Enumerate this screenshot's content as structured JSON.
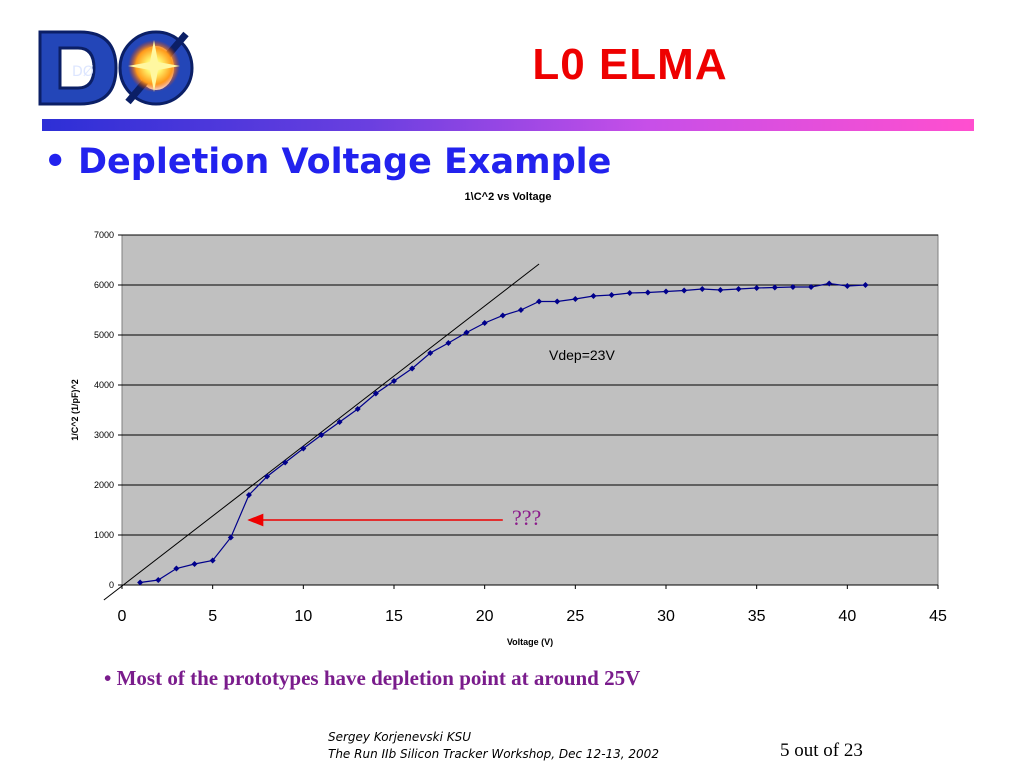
{
  "slide": {
    "title": "L0 ELMA",
    "heading_bullet": "•",
    "heading": "Depletion Voltage Example",
    "note": "• Most of the prototypes have depletion point at around 25V",
    "footer_line1": "Sergey Korjenevski KSU",
    "footer_line2": "The Run IIb Silicon Tracker Workshop,  Dec 12-13, 2002",
    "page": "5 out of 23",
    "logo_text": "DØ",
    "colors": {
      "title": "#ee0000",
      "heading": "#2222ee",
      "note": "#7a1c8c",
      "series": "#00008b",
      "plot_bg": "#c0c0c0",
      "arrow": "#ee0000"
    }
  },
  "chart_data": {
    "type": "line",
    "title": "1\\C^2 vs Voltage",
    "xlabel": "Voltage (V)",
    "ylabel": "1/C^2 (1/pF)^2",
    "xlim": [
      0,
      45
    ],
    "ylim": [
      0,
      7000
    ],
    "xticks": [
      "0",
      "5",
      "10",
      "15",
      "20",
      "25",
      "30",
      "35",
      "40",
      "45"
    ],
    "yticks": [
      "0",
      "1000",
      "2000",
      "3000",
      "4000",
      "5000",
      "6000",
      "7000"
    ],
    "grid": true,
    "series": [
      {
        "marker": "diamond",
        "x": [
          1,
          2,
          3,
          4,
          5,
          6,
          7,
          8,
          9,
          10,
          11,
          12,
          13,
          14,
          15,
          16,
          17,
          18,
          19,
          20,
          21,
          22,
          23,
          24,
          25,
          26,
          27,
          28,
          29,
          30,
          31,
          32,
          33,
          34,
          35,
          36,
          37,
          38,
          39,
          40,
          41
        ],
        "y": [
          50,
          100,
          330,
          420,
          490,
          950,
          1800,
          2170,
          2450,
          2730,
          3000,
          3260,
          3520,
          3830,
          4080,
          4330,
          4640,
          4840,
          5050,
          5240,
          5390,
          5500,
          5670,
          5670,
          5720,
          5780,
          5800,
          5840,
          5850,
          5870,
          5890,
          5920,
          5900,
          5920,
          5940,
          5950,
          5960,
          5960,
          6030,
          5980,
          6000
        ]
      }
    ],
    "fit_line": {
      "x": [
        -1,
        23
      ],
      "y": [
        -300,
        6420
      ]
    },
    "annotations": [
      {
        "text": "Vdep=23V"
      },
      {
        "text": "???",
        "arrow_from": [
          21,
          1300
        ],
        "arrow_to": [
          7,
          1300
        ]
      }
    ]
  }
}
